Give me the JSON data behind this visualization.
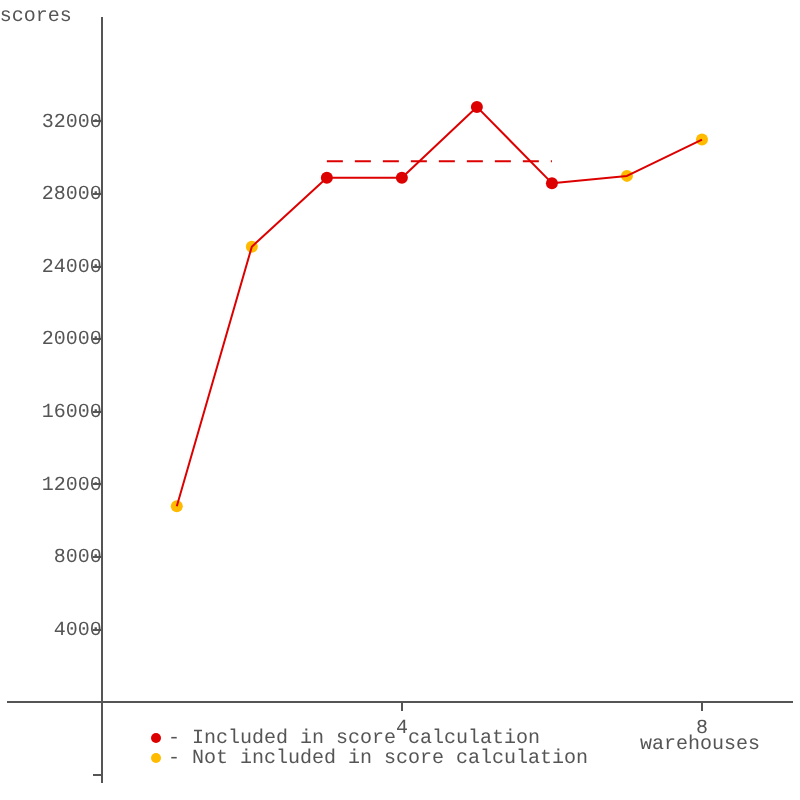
{
  "chart_data": {
    "type": "line",
    "xlabel": "warehouses",
    "ylabel": "scores",
    "x": [
      1,
      2,
      3,
      4,
      5,
      6,
      7,
      8
    ],
    "xlim": [
      -1.25,
      9.2
    ],
    "ylim": [
      -4400,
      37700
    ],
    "xticks": [
      4,
      8
    ],
    "yticks": [
      {
        "value": -4000,
        "label": null
      },
      4000,
      8000,
      12000,
      16000,
      20000,
      24000,
      28000,
      32000
    ],
    "grid": false,
    "legend": "bottom left",
    "series": [
      {
        "color": "#dd0000",
        "marker": "none",
        "values": [
          10800,
          25100,
          28900,
          28900,
          32800,
          28600,
          29000,
          31000
        ]
      },
      {
        "type": "scatter",
        "name": "- Included in score calculation",
        "color": "#dd0000",
        "marker": "circle",
        "values": [
          null,
          null,
          28900,
          28900,
          32800,
          28600,
          null,
          null
        ]
      },
      {
        "type": "scatter",
        "name": "- Not included in score calculation",
        "color": "#ffbb00",
        "marker": "circle",
        "values": [
          10800,
          25100,
          null,
          null,
          null,
          null,
          29000,
          31000
        ]
      },
      {
        "color": "#dd0000",
        "marker": "none",
        "line_style": "dashed",
        "x": [
          3,
          6
        ],
        "values": [
          29800,
          29800
        ]
      }
    ]
  }
}
